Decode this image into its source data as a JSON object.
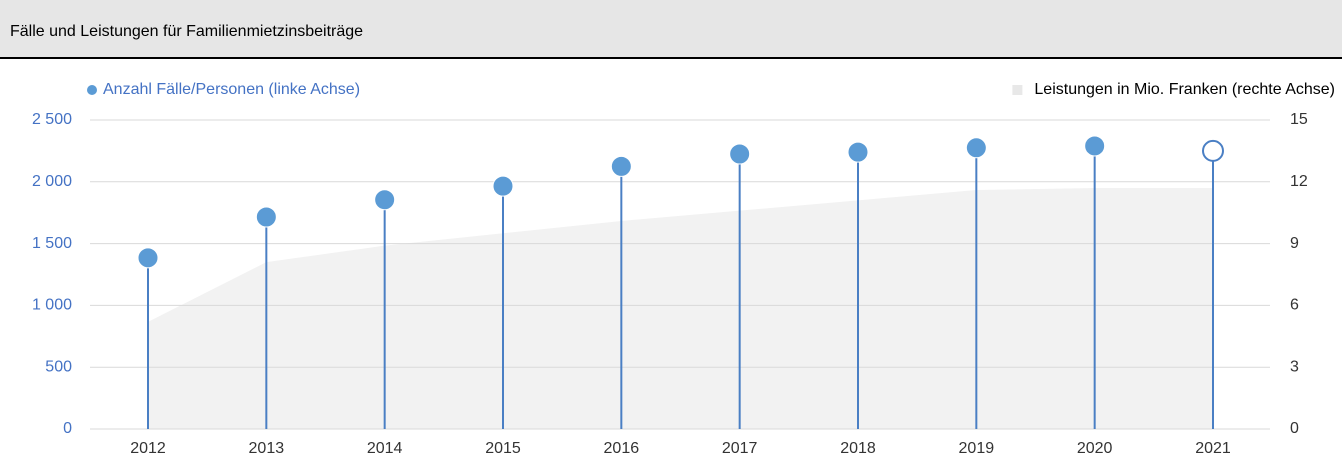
{
  "chart_data": {
    "type": "lollipop",
    "title": "Fälle und Leistungen für Familienmietzinsbeiträge",
    "categories": [
      "2012",
      "2013",
      "2014",
      "2015",
      "2016",
      "2017",
      "2018",
      "2019",
      "2020",
      "2021"
    ],
    "series": [
      {
        "name": "Anzahl Fälle/Personen (linke Achse)",
        "color": "#5b9bd5",
        "values": [
          1385,
          1715,
          1855,
          1965,
          2125,
          2225,
          2240,
          2275,
          2290,
          2250
        ],
        "hollow": [
          false,
          false,
          false,
          false,
          false,
          false,
          false,
          false,
          false,
          true
        ]
      },
      {
        "name": "Leistungen in Mio. Franken (rechte Achse)",
        "color": "#f2f2f2",
        "axis": "y2",
        "values": [
          5.2,
          8.1,
          8.9,
          9.5,
          10.1,
          10.6,
          11.1,
          11.6,
          11.7,
          11.7
        ]
      }
    ],
    "ylim": [
      0,
      2500
    ],
    "yticks": [
      0,
      500,
      {
        "value": 1000,
        "label": "1 000"
      },
      {
        "value": 1500,
        "label": "1 500"
      },
      {
        "value": 2000,
        "label": "2 000"
      },
      {
        "value": 2500,
        "label": "2 500"
      }
    ],
    "y2lim": [
      0,
      15
    ],
    "y2ticks": [
      0,
      3,
      6,
      9,
      12,
      15
    ],
    "grid": true
  }
}
